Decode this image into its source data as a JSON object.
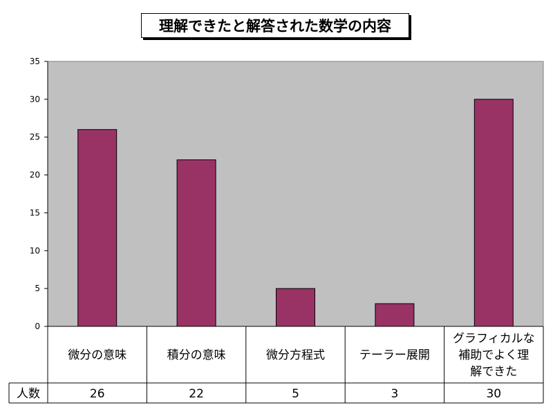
{
  "chart_data": {
    "type": "bar",
    "title": "理解できたと解答された数学の内容",
    "categories": [
      "微分の意味",
      "積分の意味",
      "微分方程式",
      "テーラー展開",
      "グラフィカルな補助でよく理解できた"
    ],
    "category_display_lines": [
      [
        "微分の意味"
      ],
      [
        "積分の意味"
      ],
      [
        "微分方程式"
      ],
      [
        "テーラー展開"
      ],
      [
        "グラフィカルな",
        "補助でよく理",
        "解できた"
      ]
    ],
    "values": [
      26,
      22,
      5,
      3,
      30
    ],
    "ylim": [
      0,
      35
    ],
    "yticks": [
      0,
      5,
      10,
      15,
      20,
      25,
      30,
      35
    ],
    "grid": false,
    "table_row_label": "人数",
    "table_values": [
      "26",
      "22",
      "5",
      "3",
      "30"
    ],
    "colors": {
      "bar": "#993366",
      "plot_background": "#c0c0c0"
    }
  }
}
